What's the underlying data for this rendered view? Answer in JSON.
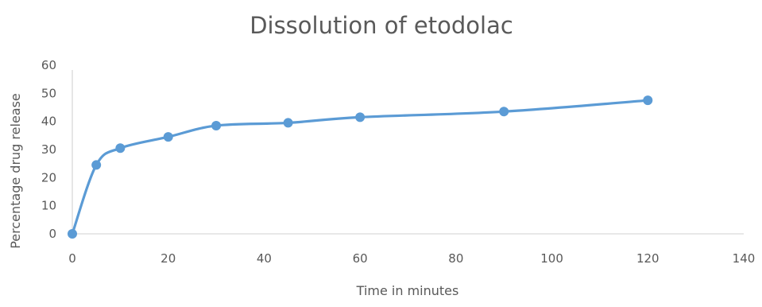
{
  "chart_data": {
    "type": "line",
    "title": "Dissolution of etodolac",
    "xlabel": "Time in minutes",
    "ylabel": "Percentage drug release",
    "xlim": [
      0,
      140
    ],
    "ylim": [
      0,
      60
    ],
    "x_ticks": [
      0,
      20,
      40,
      60,
      80,
      100,
      120,
      140
    ],
    "y_ticks": [
      0,
      10,
      20,
      30,
      40,
      50,
      60
    ],
    "grid": false,
    "smooth": true,
    "series": [
      {
        "x": [
          0,
          5,
          10,
          20,
          30,
          45,
          60,
          90,
          120
        ],
        "y": [
          0,
          24.5,
          30.5,
          34.5,
          38.5,
          39.5,
          41.5,
          43.5,
          47.5
        ],
        "color": "#5b9bd5"
      }
    ]
  }
}
